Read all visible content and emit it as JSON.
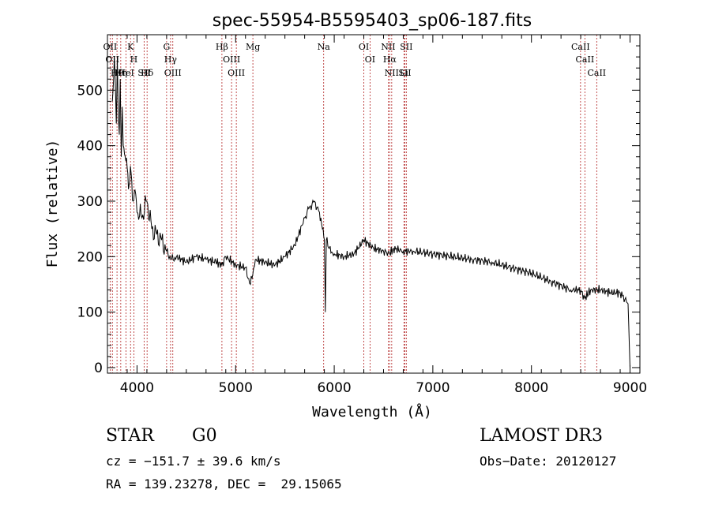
{
  "chart_data": {
    "type": "line",
    "title": "spec-55954-B5595403_sp06-187.fits",
    "xlabel": "Wavelength (Å)",
    "ylabel": "Flux (relative)",
    "xlim": [
      3700,
      9100
    ],
    "ylim": [
      -10,
      600
    ],
    "xticks": [
      4000,
      5000,
      6000,
      7000,
      8000,
      9000
    ],
    "yticks": [
      0,
      100,
      200,
      300,
      400,
      500
    ],
    "line_color": "#000000",
    "marker_color": "#b22222",
    "series": [
      {
        "name": "flux",
        "x": [
          3750,
          3770,
          3790,
          3800,
          3810,
          3820,
          3830,
          3840,
          3850,
          3860,
          3880,
          3900,
          3920,
          3940,
          3960,
          3980,
          4000,
          4050,
          4100,
          4150,
          4200,
          4250,
          4300,
          4350,
          4400,
          4500,
          4600,
          4700,
          4800,
          4860,
          4900,
          5000,
          5100,
          5150,
          5200,
          5300,
          5400,
          5500,
          5600,
          5700,
          5750,
          5800,
          5850,
          5880,
          5900,
          5910,
          5920,
          5950,
          6000,
          6100,
          6200,
          6300,
          6400,
          6500,
          6563,
          6600,
          6700,
          6800,
          7000,
          7200,
          7400,
          7600,
          7800,
          8000,
          8200,
          8400,
          8500,
          8540,
          8600,
          8700,
          8800,
          8900,
          8980,
          9000
        ],
        "y": [
          480,
          560,
          440,
          560,
          450,
          420,
          520,
          380,
          470,
          400,
          380,
          360,
          330,
          350,
          300,
          320,
          280,
          270,
          300,
          250,
          240,
          230,
          210,
          195,
          200,
          190,
          200,
          195,
          190,
          185,
          200,
          185,
          180,
          150,
          195,
          190,
          185,
          200,
          220,
          270,
          290,
          300,
          280,
          250,
          230,
          100,
          230,
          215,
          205,
          200,
          205,
          230,
          215,
          210,
          205,
          215,
          210,
          210,
          205,
          200,
          195,
          190,
          180,
          170,
          155,
          140,
          140,
          125,
          140,
          140,
          135,
          135,
          115,
          0
        ]
      }
    ],
    "line_markers": [
      {
        "wavelength": 3727,
        "label": "OII"
      },
      {
        "wavelength": 3750,
        "label": "OII"
      },
      {
        "wavelength": 3797,
        "label": "Hθ"
      },
      {
        "wavelength": 3835,
        "label": "Hη"
      },
      {
        "wavelength": 3889,
        "label": "HeI"
      },
      {
        "wavelength": 3934,
        "label": "K"
      },
      {
        "wavelength": 3968,
        "label": "H"
      },
      {
        "wavelength": 4072,
        "label": "SII"
      },
      {
        "wavelength": 4102,
        "label": "Hδ"
      },
      {
        "wavelength": 4300,
        "label": "G"
      },
      {
        "wavelength": 4340,
        "label": "Hγ"
      },
      {
        "wavelength": 4363,
        "label": "OIII"
      },
      {
        "wavelength": 4861,
        "label": "Hβ"
      },
      {
        "wavelength": 4959,
        "label": "OIII"
      },
      {
        "wavelength": 5007,
        "label": "OIII"
      },
      {
        "wavelength": 5175,
        "label": "Mg"
      },
      {
        "wavelength": 5893,
        "label": "Na"
      },
      {
        "wavelength": 6300,
        "label": "OI"
      },
      {
        "wavelength": 6363,
        "label": "OI"
      },
      {
        "wavelength": 6548,
        "label": "NII"
      },
      {
        "wavelength": 6563,
        "label": "Hα"
      },
      {
        "wavelength": 6583,
        "label": "NII"
      },
      {
        "wavelength": 6707,
        "label": "Li"
      },
      {
        "wavelength": 6716,
        "label": "SII"
      },
      {
        "wavelength": 6731,
        "label": "SII"
      },
      {
        "wavelength": 8498,
        "label": "CaII"
      },
      {
        "wavelength": 8542,
        "label": "CaII"
      },
      {
        "wavelength": 8662,
        "label": "CaII"
      }
    ]
  },
  "info": {
    "class_label": "STAR",
    "subclass": "G0",
    "survey": "LAMOST DR3",
    "cz": "cz = −151.7 ± 39.6 km/s",
    "obs_date": "Obs−Date: 20120127",
    "coords": "RA = 139.23278, DEC =  29.15065"
  }
}
